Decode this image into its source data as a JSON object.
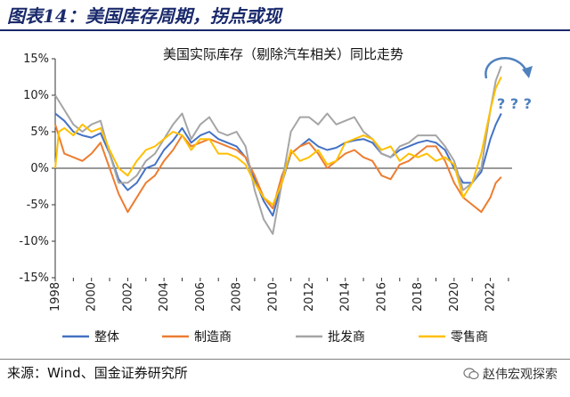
{
  "figure": {
    "title": "图表14：美国库存周期，拐点或现",
    "source": "来源：Wind、国金证券研究所",
    "watermark": "赵伟宏观探索"
  },
  "chart_data": {
    "type": "line",
    "title": "美国实际库存（剔除汽车相关）同比走势",
    "xlabel": "",
    "ylabel": "",
    "xlim": [
      1998,
      2023.2
    ],
    "ylim": [
      -15,
      15
    ],
    "y_ticks": [
      "-15%",
      "-10%",
      "-5%",
      "0%",
      "5%",
      "10%",
      "15%"
    ],
    "x_ticks": [
      "1998",
      "2000",
      "2002",
      "2004",
      "2006",
      "2008",
      "2010",
      "2012",
      "2014",
      "2016",
      "2018",
      "2020",
      "2022"
    ],
    "grid": false,
    "legend": "bottom",
    "annotation": "? ? ?",
    "colors": {
      "overall": "#4472C4",
      "manufacturing": "#ED7D31",
      "wholesale": "#A5A5A5",
      "retail": "#FFC000",
      "annotation": "#4F81BD"
    },
    "series": [
      {
        "name": "整体",
        "color": "#4472C4",
        "points": [
          [
            1998,
            7.5
          ],
          [
            1998.5,
            6.5
          ],
          [
            1999,
            5
          ],
          [
            1999.5,
            4.5
          ],
          [
            2000,
            4.2
          ],
          [
            2000.5,
            4.8
          ],
          [
            2001,
            2
          ],
          [
            2001.5,
            -1.5
          ],
          [
            2002,
            -3
          ],
          [
            2002.5,
            -2
          ],
          [
            2003,
            0
          ],
          [
            2003.5,
            0.5
          ],
          [
            2004,
            2.5
          ],
          [
            2004.5,
            3.8
          ],
          [
            2005,
            5.5
          ],
          [
            2005.5,
            3.5
          ],
          [
            2006,
            4.5
          ],
          [
            2006.5,
            5
          ],
          [
            2007,
            4
          ],
          [
            2007.5,
            3.5
          ],
          [
            2008,
            3
          ],
          [
            2008.5,
            1.5
          ],
          [
            2009,
            -1.5
          ],
          [
            2009.5,
            -4.5
          ],
          [
            2010,
            -6.5
          ],
          [
            2010.5,
            -2
          ],
          [
            2011,
            2
          ],
          [
            2011.5,
            3
          ],
          [
            2012,
            4
          ],
          [
            2012.5,
            3
          ],
          [
            2013,
            2.5
          ],
          [
            2013.5,
            2.8
          ],
          [
            2014,
            3.5
          ],
          [
            2014.5,
            3.8
          ],
          [
            2015,
            4
          ],
          [
            2015.5,
            3.5
          ],
          [
            2016,
            2
          ],
          [
            2016.5,
            1.5
          ],
          [
            2017,
            2.5
          ],
          [
            2017.5,
            3
          ],
          [
            2018,
            3.5
          ],
          [
            2018.5,
            3.8
          ],
          [
            2019,
            3.5
          ],
          [
            2019.5,
            2.5
          ],
          [
            2020,
            0
          ],
          [
            2020.5,
            -2
          ],
          [
            2021,
            -2
          ],
          [
            2021.5,
            -0.5
          ],
          [
            2022,
            4
          ],
          [
            2022.3,
            6
          ],
          [
            2022.6,
            7.5
          ]
        ]
      },
      {
        "name": "制造商",
        "color": "#ED7D31",
        "points": [
          [
            1998,
            6
          ],
          [
            1998.5,
            2
          ],
          [
            1999,
            1.5
          ],
          [
            1999.5,
            1
          ],
          [
            2000,
            2
          ],
          [
            2000.5,
            3.5
          ],
          [
            2001,
            0
          ],
          [
            2001.5,
            -3.5
          ],
          [
            2002,
            -6
          ],
          [
            2002.5,
            -4
          ],
          [
            2003,
            -2
          ],
          [
            2003.5,
            -1
          ],
          [
            2004,
            1
          ],
          [
            2004.5,
            2.5
          ],
          [
            2005,
            4.5
          ],
          [
            2005.5,
            3
          ],
          [
            2006,
            3.5
          ],
          [
            2006.5,
            4
          ],
          [
            2007,
            3.5
          ],
          [
            2007.5,
            3
          ],
          [
            2008,
            2.5
          ],
          [
            2008.5,
            1.5
          ],
          [
            2009,
            -1
          ],
          [
            2009.5,
            -4
          ],
          [
            2010,
            -5.5
          ],
          [
            2010.5,
            -1
          ],
          [
            2011,
            2
          ],
          [
            2011.5,
            3
          ],
          [
            2012,
            3.5
          ],
          [
            2012.5,
            2
          ],
          [
            2013,
            0
          ],
          [
            2013.5,
            1
          ],
          [
            2014,
            2
          ],
          [
            2014.5,
            2.5
          ],
          [
            2015,
            1.5
          ],
          [
            2015.5,
            1
          ],
          [
            2016,
            -1
          ],
          [
            2016.5,
            -1.5
          ],
          [
            2017,
            0.5
          ],
          [
            2017.5,
            1
          ],
          [
            2018,
            2
          ],
          [
            2018.5,
            3
          ],
          [
            2019,
            3
          ],
          [
            2019.5,
            1
          ],
          [
            2020,
            -2
          ],
          [
            2020.5,
            -4
          ],
          [
            2021,
            -5
          ],
          [
            2021.5,
            -6
          ],
          [
            2022,
            -4
          ],
          [
            2022.3,
            -2
          ],
          [
            2022.6,
            -1.2
          ]
        ]
      },
      {
        "name": "批发商",
        "color": "#A5A5A5",
        "points": [
          [
            1998,
            10
          ],
          [
            1998.5,
            8
          ],
          [
            1999,
            6
          ],
          [
            1999.5,
            5
          ],
          [
            2000,
            6
          ],
          [
            2000.5,
            6.5
          ],
          [
            2001,
            2
          ],
          [
            2001.5,
            -2
          ],
          [
            2002,
            -2
          ],
          [
            2002.5,
            -1
          ],
          [
            2003,
            1
          ],
          [
            2003.5,
            2
          ],
          [
            2004,
            4
          ],
          [
            2004.5,
            6
          ],
          [
            2005,
            7.5
          ],
          [
            2005.5,
            4
          ],
          [
            2006,
            6
          ],
          [
            2006.5,
            7
          ],
          [
            2007,
            5
          ],
          [
            2007.5,
            4.5
          ],
          [
            2008,
            5
          ],
          [
            2008.5,
            3
          ],
          [
            2009,
            -3
          ],
          [
            2009.5,
            -7
          ],
          [
            2010,
            -9
          ],
          [
            2010.5,
            -2
          ],
          [
            2011,
            5
          ],
          [
            2011.5,
            7
          ],
          [
            2012,
            7
          ],
          [
            2012.5,
            6
          ],
          [
            2013,
            7.5
          ],
          [
            2013.5,
            6
          ],
          [
            2014,
            6.5
          ],
          [
            2014.5,
            7
          ],
          [
            2015,
            5
          ],
          [
            2015.5,
            4
          ],
          [
            2016,
            2
          ],
          [
            2016.5,
            1.5
          ],
          [
            2017,
            3
          ],
          [
            2017.5,
            3.5
          ],
          [
            2018,
            4.5
          ],
          [
            2018.5,
            4.5
          ],
          [
            2019,
            4.5
          ],
          [
            2019.5,
            3
          ],
          [
            2020,
            1
          ],
          [
            2020.5,
            -3
          ],
          [
            2021,
            -2
          ],
          [
            2021.5,
            0
          ],
          [
            2022,
            8
          ],
          [
            2022.3,
            12
          ],
          [
            2022.6,
            14
          ]
        ]
      },
      {
        "name": "零售商",
        "color": "#FFC000",
        "points": [
          [
            1998,
            0
          ],
          [
            1998.2,
            5
          ],
          [
            1998.5,
            5.5
          ],
          [
            1999,
            4.5
          ],
          [
            1999.5,
            6
          ],
          [
            2000,
            5
          ],
          [
            2000.5,
            5.5
          ],
          [
            2001,
            2.5
          ],
          [
            2001.5,
            0
          ],
          [
            2002,
            -1
          ],
          [
            2002.5,
            1
          ],
          [
            2003,
            2.5
          ],
          [
            2003.5,
            3
          ],
          [
            2004,
            4
          ],
          [
            2004.5,
            5
          ],
          [
            2005,
            4.5
          ],
          [
            2005.5,
            2.5
          ],
          [
            2006,
            4
          ],
          [
            2006.5,
            4
          ],
          [
            2007,
            2
          ],
          [
            2007.5,
            2
          ],
          [
            2008,
            1.5
          ],
          [
            2008.5,
            0.5
          ],
          [
            2009,
            -2
          ],
          [
            2009.5,
            -4
          ],
          [
            2010,
            -5
          ],
          [
            2010.5,
            -2
          ],
          [
            2011,
            2.5
          ],
          [
            2011.5,
            1
          ],
          [
            2012,
            1.5
          ],
          [
            2012.5,
            2.5
          ],
          [
            2013,
            0.5
          ],
          [
            2013.5,
            1
          ],
          [
            2014,
            3.5
          ],
          [
            2014.5,
            4
          ],
          [
            2015,
            4.5
          ],
          [
            2015.5,
            4
          ],
          [
            2016,
            2.5
          ],
          [
            2016.5,
            3
          ],
          [
            2017,
            1
          ],
          [
            2017.5,
            2
          ],
          [
            2018,
            1.5
          ],
          [
            2018.5,
            2
          ],
          [
            2019,
            1
          ],
          [
            2019.5,
            1.5
          ],
          [
            2020,
            0.5
          ],
          [
            2020.5,
            -4
          ],
          [
            2021,
            -2
          ],
          [
            2021.5,
            2
          ],
          [
            2022,
            8
          ],
          [
            2022.3,
            11
          ],
          [
            2022.6,
            12.5
          ]
        ]
      }
    ]
  }
}
